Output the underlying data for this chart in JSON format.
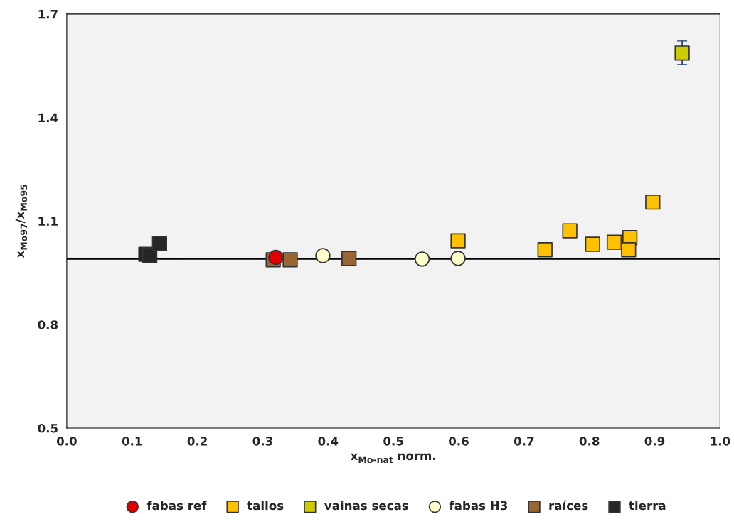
{
  "chart_data": {
    "type": "scatter",
    "xlabel": "x$_{Mo-nat}$ norm.",
    "ylabel": "x$_{Mo97}$/x$_{Mo95}$",
    "xlim": [
      0.0,
      1.0
    ],
    "xticks": [
      {
        "value": 0.0,
        "label": "0.0"
      },
      0.1,
      0.2,
      0.3,
      0.4,
      0.5,
      0.6,
      0.7,
      0.8,
      0.9,
      {
        "value": 1.0,
        "label": "1.0"
      }
    ],
    "ylim": [
      0.5,
      1.7
    ],
    "yticks": [
      0.5,
      0.8,
      1.1,
      1.4,
      1.7
    ],
    "grid": false,
    "legend": "bottom",
    "ref_lines": [
      {
        "axis": "y",
        "value": 0.99,
        "color": "#000000",
        "line_style": "solid"
      }
    ],
    "series": [
      {
        "name": "fabas ref",
        "color": "#e00000",
        "marker": "circle",
        "x": [
          0.32
        ],
        "values": [
          0.995
        ]
      },
      {
        "name": "tallos",
        "color": "#ffc000",
        "marker": "square",
        "x": [
          0.599,
          0.732,
          0.77,
          0.805,
          0.838,
          0.862,
          0.86,
          0.897
        ],
        "values": [
          1.043,
          1.017,
          1.072,
          1.033,
          1.039,
          1.052,
          1.017,
          1.155
        ]
      },
      {
        "name": "vainas secas",
        "color": "#cccc00",
        "marker": "square",
        "x": [
          0.942
        ],
        "values": [
          1.587
        ],
        "errors": [
          [
            1.554,
            1.622
          ]
        ]
      },
      {
        "name": "fabas H3",
        "color": "#ffffcc",
        "marker": "circle",
        "x": [
          0.392,
          0.544,
          0.599
        ],
        "values": [
          1.0,
          0.99,
          0.992
        ]
      },
      {
        "name": "raíces",
        "color": "#996633",
        "marker": "square",
        "x": [
          0.316,
          0.342,
          0.432
        ],
        "values": [
          0.988,
          0.988,
          0.992
        ]
      },
      {
        "name": "tierra",
        "color": "#262626",
        "marker": "square",
        "x": [
          0.121,
          0.127,
          0.142
        ],
        "values": [
          1.004,
          1.0,
          1.035
        ]
      }
    ]
  }
}
